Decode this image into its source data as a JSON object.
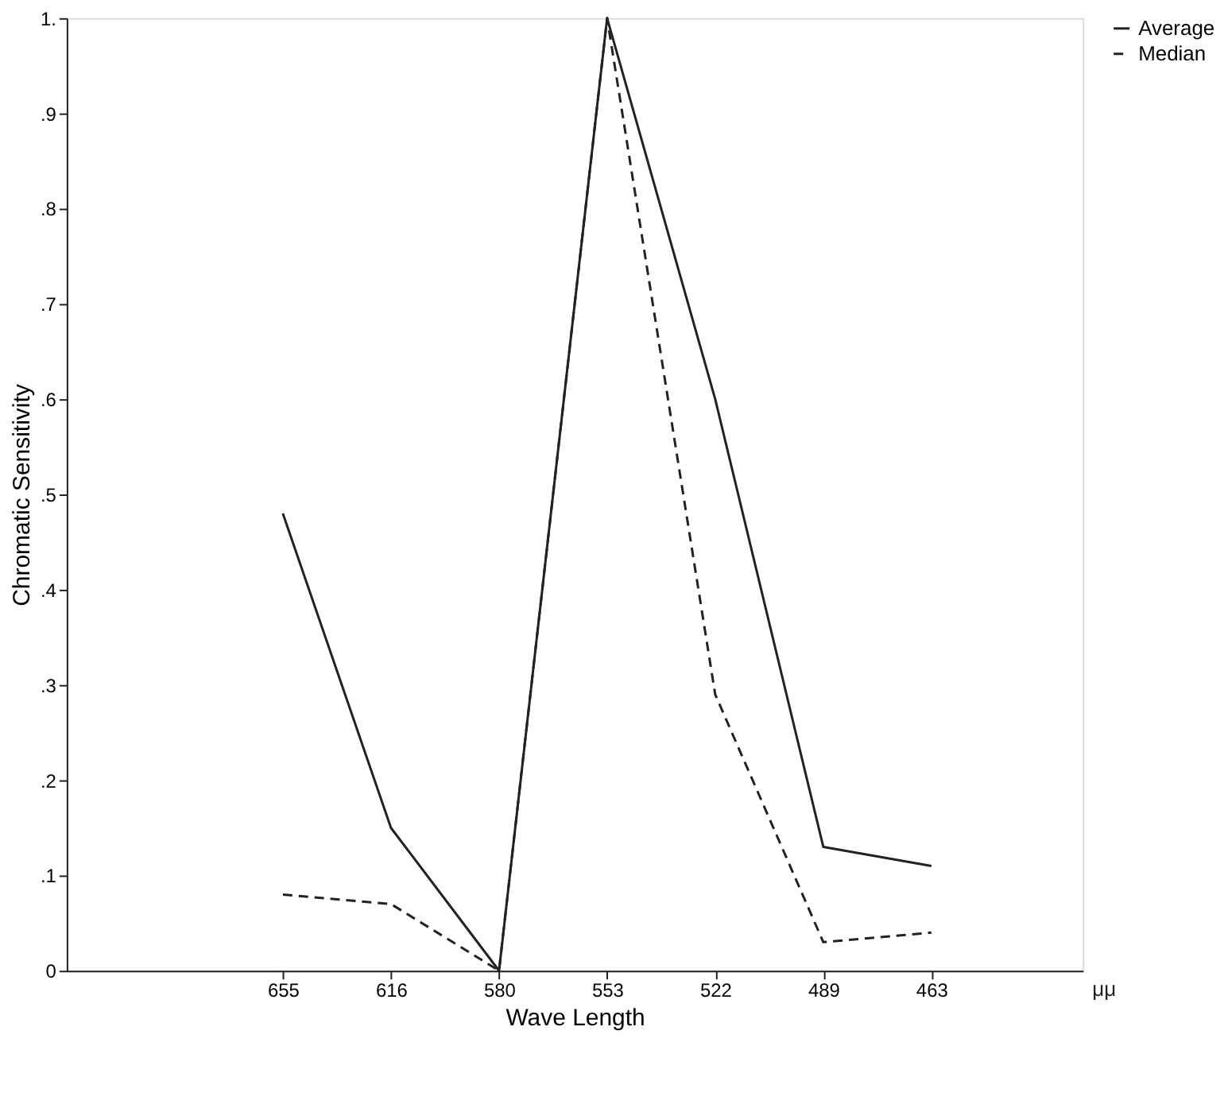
{
  "chart_data": {
    "type": "line",
    "xlabel": "Wave Length",
    "ylabel": "Chromatic Sensitivity",
    "categories": [
      "655",
      "616",
      "580",
      "553",
      "522",
      "489",
      "463"
    ],
    "series": [
      {
        "name": "Average",
        "color": "#222222",
        "line_style": "solid",
        "values": [
          0.48,
          0.15,
          0,
          1.0,
          0.6,
          0.13,
          0.11
        ]
      },
      {
        "name": "Median",
        "color": "#222222",
        "line_style": "dashed",
        "values": [
          0.08,
          0.07,
          0,
          1.0,
          0.29,
          0.03,
          0.04
        ]
      }
    ],
    "ylim": [
      0,
      1
    ],
    "yticks": [
      {
        "value": 0,
        "label": "0"
      },
      {
        "value": 0.1,
        "label": ".1"
      },
      {
        "value": 0.2,
        "label": ".2"
      },
      {
        "value": 0.3,
        "label": ".3"
      },
      {
        "value": 0.4,
        "label": ".4"
      },
      {
        "value": 0.5,
        "label": ".5"
      },
      {
        "value": 0.6,
        "label": ".6"
      },
      {
        "value": 0.7,
        "label": ".7"
      },
      {
        "value": 0.8,
        "label": ".8"
      },
      {
        "value": 0.9,
        "label": ".9"
      },
      {
        "value": 1,
        "label": "1."
      }
    ],
    "annotations": [
      "μμ"
    ],
    "legend": "right",
    "grid": false,
    "marker": "none"
  }
}
